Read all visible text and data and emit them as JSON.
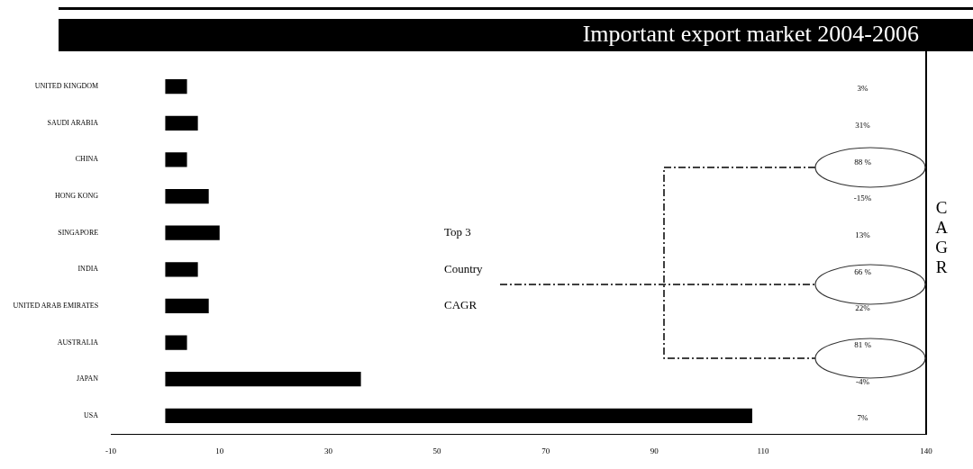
{
  "chart_data": {
    "type": "bar",
    "orientation": "horizontal",
    "title": "Important export market 2004-2006",
    "categories": [
      "UNITED KINGDOM",
      "SAUDI ARABIA",
      "CHINA",
      "HONG KONG",
      "SINGAPORE",
      "INDIA",
      "UNITED ARAB EMIRATES",
      "AUSTRALIA",
      "JAPAN",
      "USA"
    ],
    "values": [
      4,
      6,
      4,
      8,
      10,
      6,
      8,
      4,
      36,
      108
    ],
    "color": "#000000",
    "xlim": [
      -10,
      140
    ],
    "xticks": [
      -10,
      10,
      30,
      50,
      70,
      90,
      110,
      140
    ],
    "grid": false,
    "legend": false,
    "annotations": [
      "3%",
      "31%",
      "88 %",
      "-15%",
      "13%",
      "66 %",
      "22%",
      "81 %",
      "-4%",
      "7%",
      "Top 3",
      "Country",
      "CAGR",
      "CAGR"
    ]
  }
}
